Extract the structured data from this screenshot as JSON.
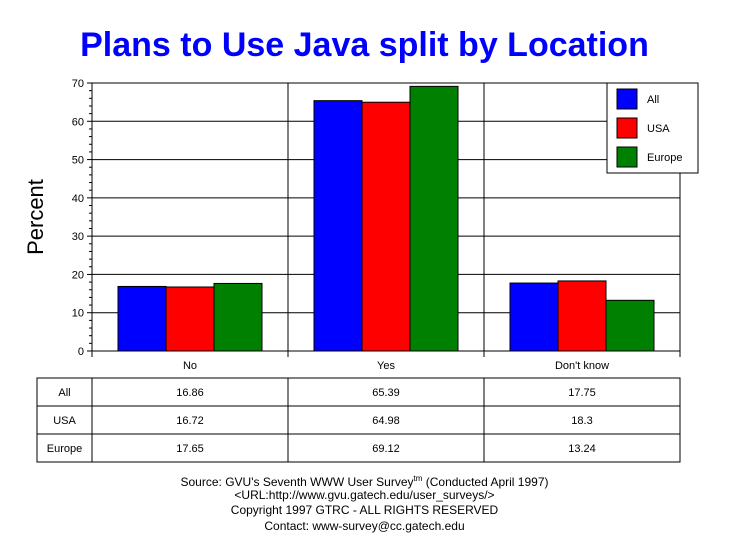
{
  "title": "Plans to Use Java split by Location",
  "chart_data": {
    "type": "bar",
    "title": "Plans to Use Java split by Location",
    "xlabel": "",
    "ylabel": "Percent",
    "ylim": [
      0,
      70
    ],
    "yticks": [
      0,
      10,
      20,
      30,
      40,
      50,
      60,
      70
    ],
    "categories": [
      "No",
      "Yes",
      "Don't know"
    ],
    "series": [
      {
        "name": "All",
        "color": "#0000ff",
        "values": [
          16.86,
          65.39,
          17.75
        ]
      },
      {
        "name": "USA",
        "color": "#ff0000",
        "values": [
          16.72,
          64.98,
          18.3
        ]
      },
      {
        "name": "Europe",
        "color": "#008000",
        "values": [
          17.65,
          69.12,
          13.24
        ]
      }
    ],
    "grid": true,
    "legend_position": "top-right",
    "table": {
      "rows": [
        {
          "label": "All",
          "cells": [
            "16.86",
            "65.39",
            "17.75"
          ]
        },
        {
          "label": "USA",
          "cells": [
            "16.72",
            "64.98",
            "18.3"
          ]
        },
        {
          "label": "Europe",
          "cells": [
            "17.65",
            "69.12",
            "13.24"
          ]
        }
      ]
    }
  },
  "footer": {
    "source_prefix": "Source: GVU's Seventh WWW User Survey",
    "source_sup": "tm",
    "source_suffix": " (Conducted April 1997)",
    "url": "<URL:http://www.gvu.gatech.edu/user_surveys/>",
    "copyright": "Copyright 1997 GTRC - ALL RIGHTS RESERVED",
    "contact": "Contact: www-survey@cc.gatech.edu"
  }
}
